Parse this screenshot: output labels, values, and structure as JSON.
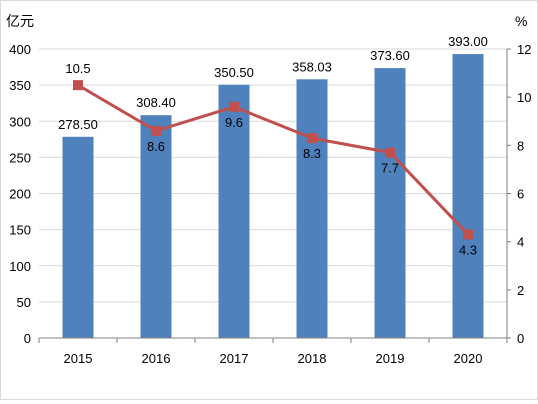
{
  "chart_data": {
    "type": "bar",
    "title": "",
    "categories": [
      "2015",
      "2016",
      "2017",
      "2018",
      "2019",
      "2020"
    ],
    "series": [
      {
        "values": [
          278.5,
          308.4,
          350.5,
          358.03,
          373.6,
          393.0
        ],
        "labels": [
          "278.50",
          "308.40",
          "350.50",
          "358.03",
          "373.60",
          "393.00"
        ],
        "chart_type": "bar",
        "axis": "left",
        "color": "#4f81bd"
      },
      {
        "values": [
          10.5,
          8.6,
          9.6,
          8.3,
          7.7,
          4.3
        ],
        "labels": [
          "10.5",
          "8.6",
          "9.6",
          "8.3",
          "7.7",
          "4.3"
        ],
        "chart_type": "line",
        "axis": "right",
        "color": "#c0504d",
        "marker": "square"
      }
    ],
    "y_left": {
      "unit": "亿元",
      "min": 0,
      "max": 400,
      "step": 50,
      "ticks": [
        "0",
        "50",
        "100",
        "150",
        "200",
        "250",
        "300",
        "350",
        "400"
      ]
    },
    "y_right": {
      "unit": "%",
      "min": 0,
      "max": 12,
      "step": 2,
      "ticks": [
        "0",
        "2",
        "4",
        "6",
        "8",
        "10",
        "12"
      ]
    },
    "grid": true,
    "legend": "none"
  }
}
